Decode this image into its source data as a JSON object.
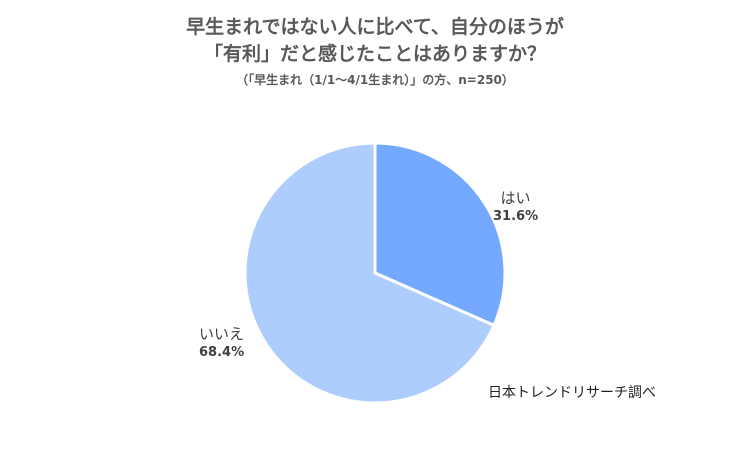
{
  "chart_data": {
    "type": "pie",
    "title_line1": "早生まれではない人に比べて、自分のほうが",
    "title_line2": "「有利」だと感じたことはありますか？",
    "subtitle": "（「早生まれ（1/1～4/1生まれ）」の方、n=250）",
    "slices": [
      {
        "label": "はい",
        "value": 31.6,
        "value_text": "31.6%",
        "color": "#75A9FF"
      },
      {
        "label": "いいえ",
        "value": 68.4,
        "value_text": "68.4%",
        "color": "#AECDFF"
      }
    ],
    "source": "日本トレンドリサーチ調べ"
  }
}
